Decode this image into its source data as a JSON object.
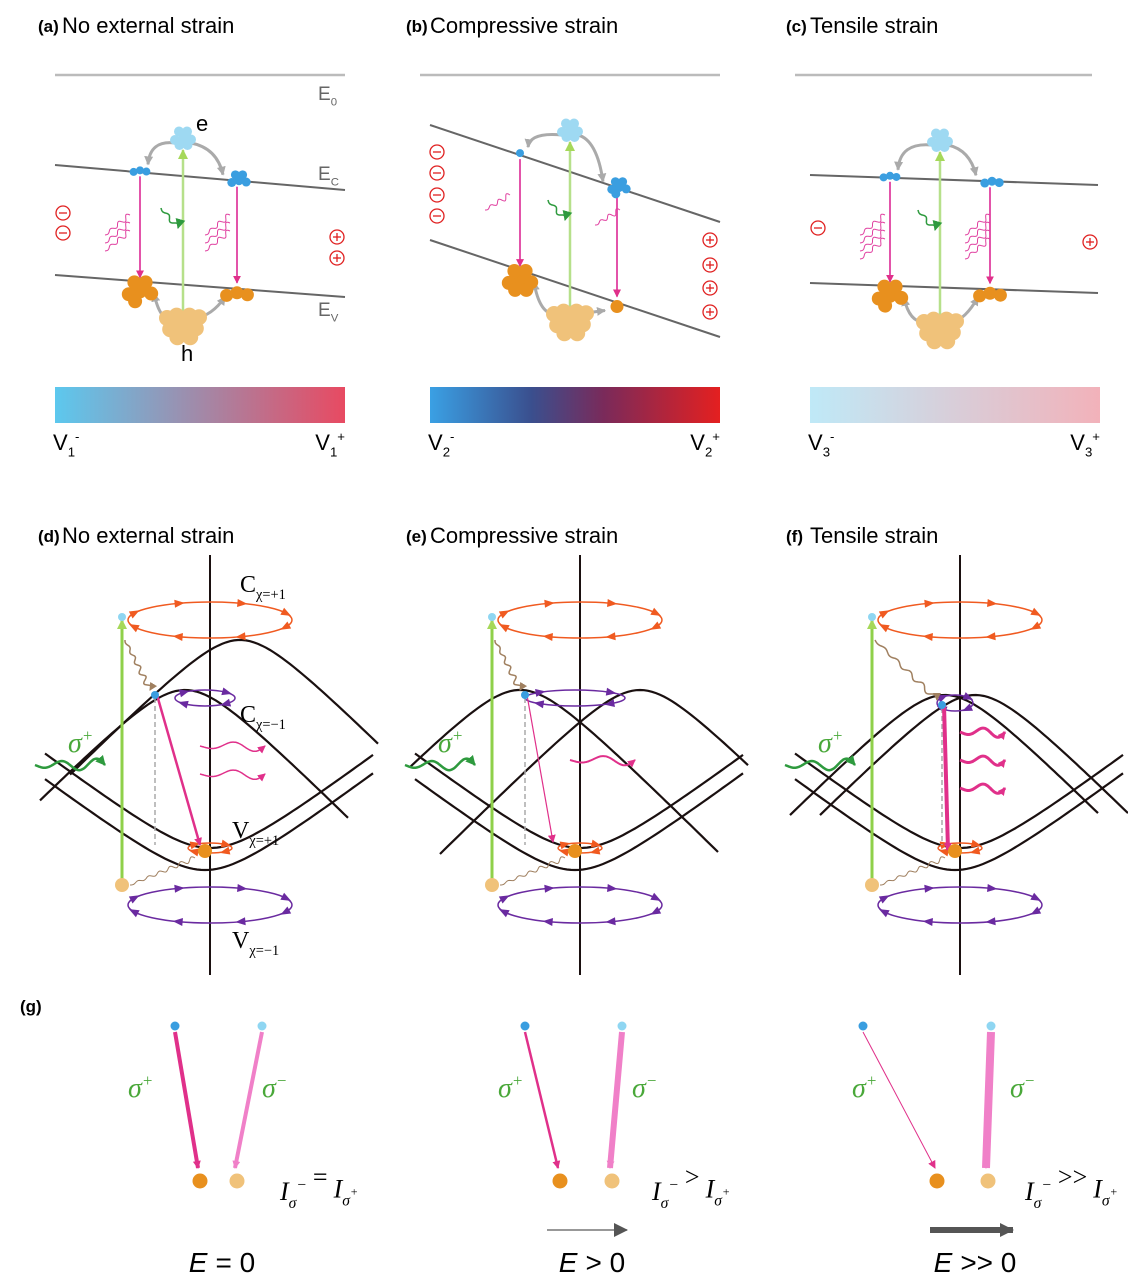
{
  "panels": [
    {
      "label": "(a)",
      "title": "No external strain",
      "levels": {
        "E0": {
          "base": "E",
          "sub": "0"
        },
        "Ec": {
          "base": "E",
          "sub": "C"
        },
        "Ev": {
          "base": "E",
          "sub": "V"
        }
      },
      "carriers": {
        "electron": "e",
        "hole": "h"
      },
      "colorbar": {
        "left": {
          "base": "V",
          "sub": "1",
          "sup": "-"
        },
        "right": {
          "base": "V",
          "sub": "1",
          "sup": "+"
        }
      }
    },
    {
      "label": "(b)",
      "title": "Compressive strain",
      "colorbar": {
        "left": {
          "base": "V",
          "sub": "2",
          "sup": "-"
        },
        "right": {
          "base": "V",
          "sub": "2",
          "sup": "+"
        }
      }
    },
    {
      "label": "(c)",
      "title": "Tensile strain",
      "colorbar": {
        "left": {
          "base": "V",
          "sub": "3",
          "sup": "-"
        },
        "right": {
          "base": "V",
          "sub": "3",
          "sup": "+"
        }
      }
    }
  ],
  "band_panels": [
    {
      "label": "(d)",
      "title": "No external strain",
      "bands": [
        {
          "base": "C",
          "sub": "χ=+1"
        },
        {
          "base": "C",
          "sub": "χ=−1"
        },
        {
          "base": "V",
          "sub": "χ=+1"
        },
        {
          "base": "V",
          "sub": "χ=−1"
        }
      ],
      "excitation": {
        "base": "σ",
        "sup": "+"
      }
    },
    {
      "label": "(e)",
      "title": "Compressive strain",
      "excitation": {
        "base": "σ",
        "sup": "+"
      }
    },
    {
      "label": "(f)",
      "title": "Tensile strain",
      "excitation": {
        "base": "σ",
        "sup": "+"
      }
    }
  ],
  "emission_panel": {
    "label": "(g)",
    "cases": [
      {
        "sigma_plus": {
          "base": "σ",
          "sup": "+"
        },
        "sigma_minus": {
          "base": "σ",
          "sup": "−"
        },
        "intensity": {
          "left": {
            "base": "I",
            "sub": "σ",
            "sup": "−"
          },
          "relation": "=",
          "right": {
            "base": "I",
            "sub": "σ",
            "sup": "+"
          }
        },
        "field": {
          "symbol": "E",
          "relation": "= 0"
        }
      },
      {
        "sigma_plus": {
          "base": "σ",
          "sup": "+"
        },
        "sigma_minus": {
          "base": "σ",
          "sup": "−"
        },
        "intensity": {
          "left": {
            "base": "I",
            "sub": "σ",
            "sup": "−"
          },
          "relation": ">",
          "right": {
            "base": "I",
            "sub": "σ",
            "sup": "+"
          }
        },
        "field": {
          "symbol": "E",
          "relation": "> 0"
        }
      },
      {
        "sigma_plus": {
          "base": "σ",
          "sup": "+"
        },
        "sigma_minus": {
          "base": "σ",
          "sup": "−"
        },
        "intensity": {
          "left": {
            "base": "I",
            "sub": "σ",
            "sup": "−"
          },
          "relation": ">>",
          "right": {
            "base": "I",
            "sub": "σ",
            "sup": "+"
          }
        },
        "field": {
          "symbol": "E",
          "relation": ">> 0"
        }
      }
    ]
  }
}
